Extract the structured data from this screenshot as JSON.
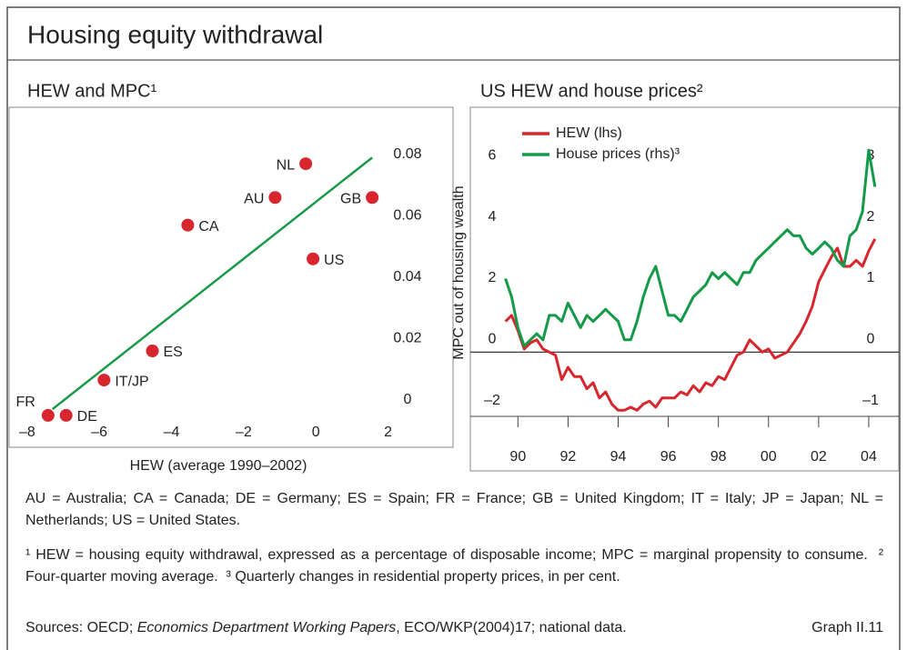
{
  "title": "Housing equity withdrawal",
  "chart_data": [
    {
      "type": "scatter",
      "title": "HEW and MPC¹",
      "x_label": "HEW (average 1990–2002)",
      "y_label": "MPC out of housing wealth",
      "labels": [
        "FR",
        "DE",
        "IT/JP",
        "ES",
        "CA",
        "AU",
        "NL",
        "US",
        "GB"
      ],
      "x": [
        -7.42,
        -6.92,
        -5.87,
        -4.53,
        -3.55,
        -1.13,
        -0.28,
        -0.08,
        1.56
      ],
      "values": [
        -0.005,
        -0.005,
        0.0065,
        0.016,
        0.057,
        0.066,
        0.077,
        0.046,
        0.066
      ],
      "color": "#d7262d",
      "fit_line": {
        "x": [
          -7.3,
          1.56
        ],
        "y": [
          -0.003,
          0.079
        ],
        "color": "#1a9a4a"
      },
      "xlim": [
        -8.5,
        3.8
      ],
      "ylim": [
        -0.0154,
        0.0954
      ],
      "xticks": [
        {
          "value": -8,
          "label": "–8"
        },
        {
          "value": -6,
          "label": "–6"
        },
        {
          "value": -4,
          "label": "–4"
        },
        {
          "value": -2,
          "label": "–2"
        },
        0,
        2
      ],
      "yticks": [
        0,
        0.02,
        0.04,
        0.06,
        0.08
      ]
    },
    {
      "type": "line",
      "title": "US HEW and house prices²",
      "x": [
        1990,
        1990.25,
        1990.5,
        1990.75,
        1991,
        1991.25,
        1991.5,
        1991.75,
        1992,
        1992.25,
        1992.5,
        1992.75,
        1993,
        1993.25,
        1993.5,
        1993.75,
        1994,
        1994.25,
        1994.5,
        1994.75,
        1995,
        1995.25,
        1995.5,
        1995.75,
        1996,
        1996.25,
        1996.5,
        1996.75,
        1997,
        1997.25,
        1997.5,
        1997.75,
        1998,
        1998.25,
        1998.5,
        1998.75,
        1999,
        1999.25,
        1999.5,
        1999.75,
        2000,
        2000.25,
        2000.5,
        2000.75,
        2001,
        2001.25,
        2001.5,
        2001.75,
        2002,
        2002.25,
        2002.5,
        2002.75,
        2003,
        2003.25,
        2003.5,
        2003.75,
        2004,
        2004.25,
        2004.5,
        2004.75
      ],
      "series": [
        {
          "name": "HEW (lhs)",
          "color": "#d7262d",
          "values": [
            1.0,
            1.2,
            0.7,
            0.1,
            0.3,
            0.4,
            0.1,
            0.0,
            -0.1,
            -0.9,
            -0.5,
            -0.8,
            -0.8,
            -1.2,
            -1.0,
            -1.5,
            -1.3,
            -1.7,
            -1.9,
            -1.9,
            -1.8,
            -1.9,
            -1.7,
            -1.6,
            -1.8,
            -1.5,
            -1.5,
            -1.5,
            -1.3,
            -1.4,
            -1.1,
            -1.3,
            -1.0,
            -1.1,
            -0.8,
            -0.9,
            -0.5,
            -0.1,
            0.0,
            0.4,
            0.2,
            0.0,
            0.1,
            -0.2,
            -0.1,
            0.0,
            0.3,
            0.6,
            1.0,
            1.5,
            2.3,
            2.7,
            3.1,
            3.4,
            2.8,
            2.8,
            3.0,
            2.8,
            3.3,
            3.7
          ]
        },
        {
          "name": "House prices (rhs)³",
          "color": "#139a48",
          "axis": "y2",
          "values": [
            1.2,
            0.9,
            0.4,
            0.1,
            0.2,
            0.3,
            0.2,
            0.6,
            0.6,
            0.5,
            0.8,
            0.6,
            0.4,
            0.6,
            0.5,
            0.6,
            0.7,
            0.6,
            0.5,
            0.2,
            0.2,
            0.5,
            0.9,
            1.2,
            1.4,
            1.0,
            0.6,
            0.6,
            0.5,
            0.7,
            0.9,
            1.0,
            1.1,
            1.3,
            1.2,
            1.3,
            1.2,
            1.1,
            1.3,
            1.3,
            1.5,
            1.6,
            1.7,
            1.8,
            1.9,
            2.0,
            1.9,
            1.9,
            1.7,
            1.6,
            1.7,
            1.8,
            1.7,
            1.5,
            1.4,
            1.9,
            2.0,
            2.3,
            3.3,
            2.7
          ]
        }
      ],
      "xlim": [
        1988.6,
        2005.7
      ],
      "ylim": [
        -2.1,
        8
      ],
      "y2lim": [
        -1.05,
        4
      ],
      "xticks": [
        {
          "value": 1990.5,
          "label": "90"
        },
        {
          "value": 1992.5,
          "label": "92"
        },
        {
          "value": 1994.5,
          "label": "94"
        },
        {
          "value": 1996.5,
          "label": "96"
        },
        {
          "value": 1998.5,
          "label": "98"
        },
        {
          "value": 2000.5,
          "label": "00"
        },
        {
          "value": 2002.5,
          "label": "02"
        },
        {
          "value": 2004.5,
          "label": "04"
        }
      ],
      "yticks": [
        {
          "value": -2,
          "label": "–2"
        },
        0,
        2,
        4,
        6
      ],
      "y2ticks": [
        {
          "value": -1,
          "label": "–1"
        },
        0,
        1,
        2,
        3
      ],
      "zero_line": true
    }
  ],
  "notes": {
    "abbreviations": "AU = Australia; CA = Canada; DE = Germany; ES = Spain; FR = France; GB = United Kingdom; IT = Italy; JP = Japan; NL = Netherlands; US = United States.",
    "footnotes": [
      "¹ HEW = housing equity withdrawal, expressed as a percentage of disposable income; MPC = marginal propensity to consume.",
      "² Four-quarter moving average.",
      "³ Quarterly changes in residential property prices, in per cent."
    ],
    "sources": [
      "Sources: OECD;",
      "Economics Department Working Papers",
      ", ECO/WKP(2004)17; national data."
    ],
    "graph_id": "Graph II.11"
  }
}
